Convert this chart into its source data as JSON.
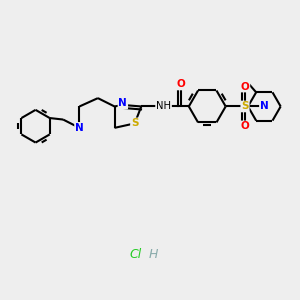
{
  "background_color": "#eeeeee",
  "bond_color": "#000000",
  "atom_colors": {
    "N": "#0000ff",
    "S": "#ccaa00",
    "O": "#ff0000",
    "H": "#000000",
    "Cl_green": "#22cc22",
    "H_teal": "#88aaaa"
  },
  "figsize": [
    3.0,
    3.0
  ],
  "dpi": 100
}
